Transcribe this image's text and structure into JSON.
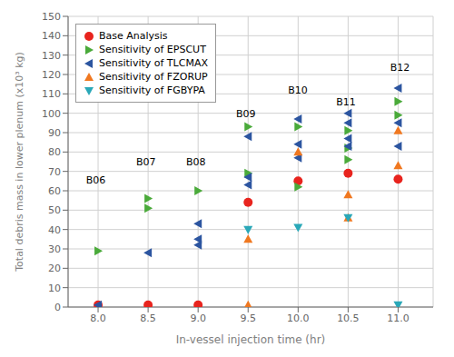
{
  "chart_data": {
    "type": "scatter",
    "xlabel": "In-vessel injection time (hr)",
    "ylabel": "Total debris mass in lower plenum (x10³ kg)",
    "xlim": [
      7.7,
      11.35
    ],
    "ylim": [
      0,
      150
    ],
    "xticks": [
      {
        "value": 8.0,
        "label": "8.0"
      },
      8.5,
      {
        "value": 9.0,
        "label": "9.0"
      },
      9.5,
      {
        "value": 10.0,
        "label": "10.0"
      },
      10.5,
      {
        "value": 11.0,
        "label": "11.0"
      }
    ],
    "yticks": [
      0,
      10,
      20,
      30,
      40,
      50,
      60,
      70,
      80,
      90,
      100,
      110,
      120,
      130,
      140,
      150
    ],
    "grid": true,
    "legend": "upper left",
    "series": [
      {
        "name": "Base Analysis",
        "color": "#e8241e",
        "marker": "circle",
        "x": [
          8.0,
          8.5,
          9.0,
          9.5,
          10.0,
          10.5,
          11.0
        ],
        "values": [
          1,
          1,
          1,
          54,
          65,
          69,
          66
        ]
      },
      {
        "name": "Sensitivity of EPSCUT",
        "color": "#4aaa3a",
        "marker": "triangle-right",
        "x": [
          8.0,
          8.5,
          8.5,
          9.0,
          9.5,
          9.5,
          10.0,
          10.0,
          10.5,
          10.5,
          10.5,
          11.0,
          11.0
        ],
        "values": [
          29,
          56,
          51,
          60,
          93,
          69,
          93,
          62,
          91,
          82,
          76,
          106,
          99
        ]
      },
      {
        "name": "Sensitivity of TLCMAX",
        "color": "#2c55a0",
        "marker": "triangle-left",
        "x": [
          8.0,
          8.5,
          9.0,
          9.0,
          9.0,
          9.5,
          9.5,
          9.5,
          10.0,
          10.0,
          10.0,
          10.5,
          10.5,
          10.5,
          10.5,
          11.0,
          11.0,
          11.0
        ],
        "values": [
          1,
          28,
          43,
          35,
          32,
          88,
          67,
          63,
          97,
          84,
          77,
          100,
          95,
          87,
          83,
          113,
          95,
          83
        ]
      },
      {
        "name": "Sensitivity of FZORUP",
        "color": "#f07820",
        "marker": "triangle-up",
        "x": [
          9.5,
          9.5,
          10.0,
          10.5,
          10.5,
          11.0,
          11.0
        ],
        "values": [
          35,
          1,
          80,
          58,
          46,
          91,
          73
        ]
      },
      {
        "name": "Sensitivity of FGBYPA",
        "color": "#2aa8b8",
        "marker": "triangle-down",
        "x": [
          9.5,
          10.0,
          10.5,
          11.0
        ],
        "values": [
          40,
          41,
          46,
          1
        ]
      }
    ],
    "annotations": [
      {
        "text": "B06",
        "x": 7.88,
        "y": 63
      },
      {
        "text": "B07",
        "x": 8.38,
        "y": 72
      },
      {
        "text": "B08",
        "x": 8.88,
        "y": 72
      },
      {
        "text": "B09",
        "x": 9.38,
        "y": 97
      },
      {
        "text": "B10",
        "x": 9.9,
        "y": 109
      },
      {
        "text": "B11",
        "x": 10.38,
        "y": 103
      },
      {
        "text": "B12",
        "x": 10.92,
        "y": 121
      }
    ]
  }
}
